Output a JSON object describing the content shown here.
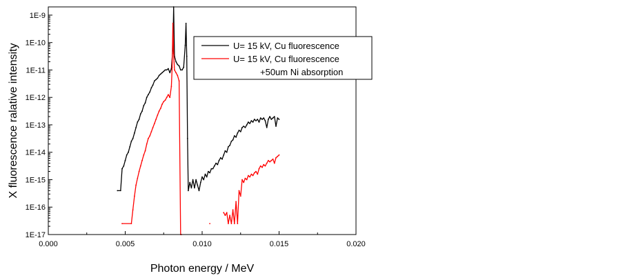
{
  "chart_data": {
    "type": "line",
    "title": "",
    "xlabel": "Photon energy / MeV",
    "ylabel": "X fluorescence ralative intensity",
    "xlim": [
      0.0,
      0.02
    ],
    "ylim_log10": [
      -17,
      -8.7
    ],
    "yscale": "log",
    "x_ticks": [
      "0.000",
      "0.005",
      "0.010",
      "0.015",
      "0.020"
    ],
    "x_tick_values": [
      0.0,
      0.005,
      0.01,
      0.015,
      0.02
    ],
    "y_ticks": [
      "1E-17",
      "1E-16",
      "1E-15",
      "1E-14",
      "1E-13",
      "1E-12",
      "1E-11",
      "1E-10",
      "1E-9"
    ],
    "y_tick_exponents": [
      -17,
      -16,
      -15,
      -14,
      -13,
      -12,
      -11,
      -10,
      -9
    ],
    "legend_position": "top-right",
    "series": [
      {
        "name": "U= 15 kV, Cu fluorescence",
        "color": "#000000",
        "points_log10": [
          [
            0.0045,
            -15.4
          ],
          [
            0.0047,
            -15.4
          ],
          [
            0.0048,
            -14.6
          ],
          [
            0.0049,
            -14.5
          ],
          [
            0.005,
            -14.3
          ],
          [
            0.0051,
            -14.1
          ],
          [
            0.0052,
            -14.0
          ],
          [
            0.0053,
            -13.8
          ],
          [
            0.0054,
            -13.6
          ],
          [
            0.0055,
            -13.5
          ],
          [
            0.0056,
            -13.3
          ],
          [
            0.0057,
            -13.1
          ],
          [
            0.0058,
            -12.9
          ],
          [
            0.0059,
            -12.8
          ],
          [
            0.006,
            -12.6
          ],
          [
            0.0061,
            -12.5
          ],
          [
            0.0062,
            -12.3
          ],
          [
            0.0063,
            -12.2
          ],
          [
            0.0064,
            -12.0
          ],
          [
            0.0065,
            -11.9
          ],
          [
            0.0066,
            -11.8
          ],
          [
            0.0067,
            -11.65
          ],
          [
            0.0068,
            -11.55
          ],
          [
            0.0069,
            -11.4
          ],
          [
            0.007,
            -11.35
          ],
          [
            0.0071,
            -11.3
          ],
          [
            0.0072,
            -11.2
          ],
          [
            0.0073,
            -11.15
          ],
          [
            0.0074,
            -11.1
          ],
          [
            0.0075,
            -11.05
          ],
          [
            0.0076,
            -11.0
          ],
          [
            0.0077,
            -11.0
          ],
          [
            0.0078,
            -10.95
          ],
          [
            0.0079,
            -11.1
          ],
          [
            0.008,
            -10.95
          ],
          [
            0.0081,
            -10.2
          ],
          [
            0.00815,
            -8.7
          ],
          [
            0.0082,
            -10.5
          ],
          [
            0.0083,
            -10.7
          ],
          [
            0.0084,
            -10.8
          ],
          [
            0.0085,
            -10.85
          ],
          [
            0.0086,
            -11.0
          ],
          [
            0.0087,
            -11.0
          ],
          [
            0.0088,
            -10.9
          ],
          [
            0.0089,
            -10.1
          ],
          [
            0.00895,
            -9.3
          ],
          [
            0.009,
            -10.5
          ],
          [
            0.00905,
            -13.5
          ],
          [
            0.0091,
            -15.4
          ],
          [
            0.0092,
            -15.1
          ],
          [
            0.0093,
            -15.3
          ],
          [
            0.0094,
            -15.0
          ],
          [
            0.0095,
            -15.3
          ],
          [
            0.0096,
            -15.0
          ],
          [
            0.0097,
            -15.2
          ],
          [
            0.0098,
            -15.4
          ],
          [
            0.0099,
            -15.1
          ],
          [
            0.01,
            -14.9
          ],
          [
            0.0101,
            -15.0
          ],
          [
            0.0102,
            -14.8
          ],
          [
            0.0103,
            -14.9
          ],
          [
            0.0104,
            -14.7
          ],
          [
            0.0105,
            -14.75
          ],
          [
            0.0106,
            -14.6
          ],
          [
            0.0107,
            -14.6
          ],
          [
            0.0108,
            -14.5
          ],
          [
            0.0109,
            -14.4
          ],
          [
            0.011,
            -14.45
          ],
          [
            0.0111,
            -14.3
          ],
          [
            0.0112,
            -14.2
          ],
          [
            0.0113,
            -14.25
          ],
          [
            0.0114,
            -14.1
          ],
          [
            0.0115,
            -13.95
          ],
          [
            0.0116,
            -14.0
          ],
          [
            0.0117,
            -13.8
          ],
          [
            0.0118,
            -13.75
          ],
          [
            0.0119,
            -13.6
          ],
          [
            0.012,
            -13.55
          ],
          [
            0.0121,
            -13.4
          ],
          [
            0.0122,
            -13.45
          ],
          [
            0.0123,
            -13.3
          ],
          [
            0.0124,
            -13.2
          ],
          [
            0.0125,
            -13.25
          ],
          [
            0.0126,
            -13.1
          ],
          [
            0.0127,
            -13.05
          ],
          [
            0.0128,
            -13.1
          ],
          [
            0.0129,
            -13.0
          ],
          [
            0.013,
            -12.9
          ],
          [
            0.0131,
            -12.95
          ],
          [
            0.0132,
            -12.85
          ],
          [
            0.0133,
            -12.9
          ],
          [
            0.0134,
            -12.8
          ],
          [
            0.0135,
            -12.85
          ],
          [
            0.0136,
            -12.8
          ],
          [
            0.0137,
            -12.9
          ],
          [
            0.0138,
            -12.75
          ],
          [
            0.0139,
            -12.8
          ],
          [
            0.014,
            -12.75
          ],
          [
            0.0141,
            -12.85
          ],
          [
            0.0142,
            -13.1
          ],
          [
            0.0143,
            -12.8
          ],
          [
            0.0144,
            -12.7
          ],
          [
            0.0145,
            -12.8
          ],
          [
            0.0146,
            -12.75
          ],
          [
            0.0147,
            -12.7
          ],
          [
            0.0148,
            -13.05
          ],
          [
            0.0149,
            -12.75
          ],
          [
            0.015,
            -12.8
          ]
        ]
      },
      {
        "name": "U= 15 kV, Cu fluorescence +50um Ni absorption",
        "color": "#ff0000",
        "points_log10": [
          [
            0.0048,
            -16.6
          ],
          [
            0.0054,
            -16.6
          ],
          [
            0.0055,
            -16.1
          ],
          [
            0.0056,
            -15.6
          ],
          [
            0.0057,
            -15.2
          ],
          [
            0.0058,
            -14.95
          ],
          [
            0.0059,
            -14.7
          ],
          [
            0.006,
            -14.5
          ],
          [
            0.0061,
            -14.3
          ],
          [
            0.0062,
            -14.1
          ],
          [
            0.0063,
            -13.95
          ],
          [
            0.0064,
            -13.7
          ],
          [
            0.0065,
            -13.5
          ],
          [
            0.0066,
            -13.4
          ],
          [
            0.0067,
            -13.25
          ],
          [
            0.0068,
            -13.1
          ],
          [
            0.0069,
            -12.95
          ],
          [
            0.007,
            -12.8
          ],
          [
            0.0071,
            -12.65
          ],
          [
            0.0072,
            -12.5
          ],
          [
            0.0073,
            -12.4
          ],
          [
            0.0074,
            -12.25
          ],
          [
            0.0075,
            -12.15
          ],
          [
            0.0076,
            -12.1
          ],
          [
            0.0077,
            -12.0
          ],
          [
            0.0078,
            -11.9
          ],
          [
            0.0079,
            -12.0
          ],
          [
            0.008,
            -11.6
          ],
          [
            0.00805,
            -10.9
          ],
          [
            0.0081,
            -9.3
          ],
          [
            0.00815,
            -10.4
          ],
          [
            0.0082,
            -11.0
          ],
          [
            0.0083,
            -11.1
          ],
          [
            0.0084,
            -11.2
          ],
          [
            0.0085,
            -11.4
          ],
          [
            0.0086,
            -17.0
          ],
          [
            0.00865,
            -17.0
          ]
        ]
      },
      {
        "name": "",
        "color": "#ff0000",
        "points_log10": [
          [
            0.0105,
            -16.6
          ]
        ]
      },
      {
        "name": "",
        "color": "#ff0000",
        "points_log10": [
          [
            0.0114,
            -16.2
          ],
          [
            0.0115,
            -16.3
          ],
          [
            0.0116,
            -16.2
          ],
          [
            0.0117,
            -16.6
          ],
          [
            0.0118,
            -16.3
          ],
          [
            0.0119,
            -16.6
          ],
          [
            0.012,
            -16.1
          ],
          [
            0.0121,
            -16.6
          ],
          [
            0.0122,
            -15.8
          ],
          [
            0.0123,
            -16.6
          ],
          [
            0.0124,
            -15.4
          ],
          [
            0.0125,
            -15.6
          ],
          [
            0.0126,
            -15.0
          ],
          [
            0.0127,
            -15.1
          ],
          [
            0.0128,
            -14.95
          ],
          [
            0.0129,
            -15.0
          ],
          [
            0.013,
            -14.85
          ],
          [
            0.0131,
            -14.9
          ],
          [
            0.0132,
            -14.8
          ],
          [
            0.0133,
            -14.85
          ],
          [
            0.0134,
            -14.75
          ],
          [
            0.0135,
            -14.7
          ],
          [
            0.0136,
            -14.8
          ],
          [
            0.0137,
            -14.6
          ],
          [
            0.0138,
            -14.5
          ],
          [
            0.0139,
            -14.55
          ],
          [
            0.014,
            -14.45
          ],
          [
            0.0141,
            -14.5
          ],
          [
            0.0142,
            -14.4
          ],
          [
            0.0143,
            -14.3
          ],
          [
            0.0144,
            -14.35
          ],
          [
            0.0145,
            -14.3
          ],
          [
            0.0146,
            -14.25
          ],
          [
            0.0147,
            -14.4
          ],
          [
            0.0148,
            -14.2
          ],
          [
            0.0149,
            -14.15
          ],
          [
            0.015,
            -14.1
          ]
        ]
      }
    ],
    "legend": {
      "entries": [
        {
          "line1": "U= 15 kV, Cu fluorescence",
          "line2": "",
          "color": "#000000"
        },
        {
          "line1": "U= 15 kV, Cu fluorescence",
          "line2": "+50um Ni absorption",
          "color": "#ff0000"
        }
      ]
    }
  }
}
